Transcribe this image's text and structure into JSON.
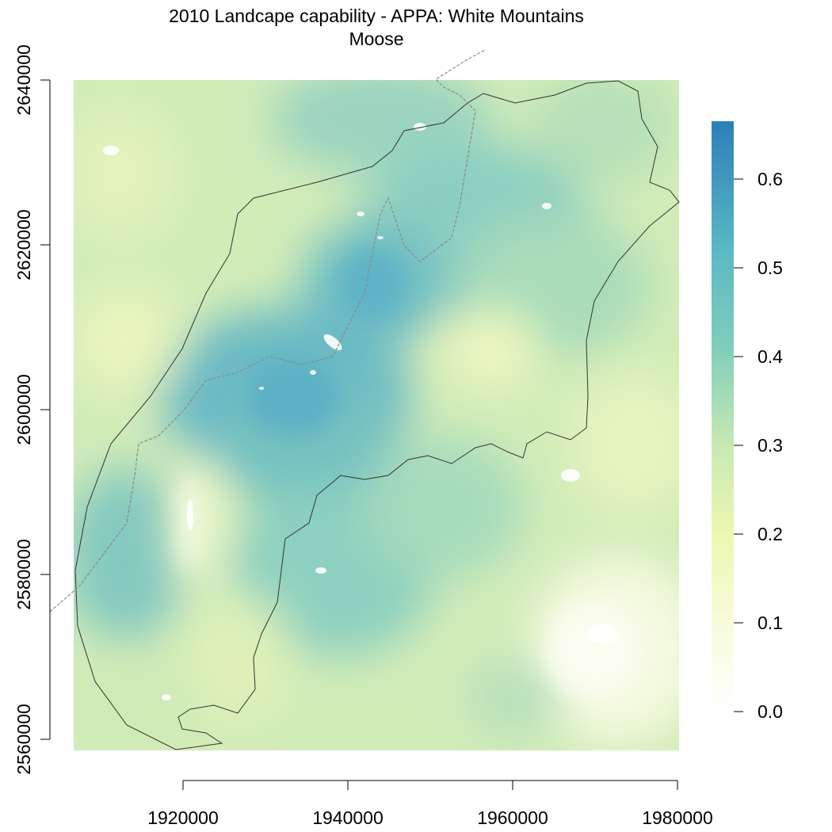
{
  "title_line1": "2010 Landcape capability - APPA: White Mountains",
  "title_line2": "Moose",
  "map": {
    "x_ticks": [
      "1920000",
      "1940000",
      "1960000",
      "1980000"
    ],
    "y_ticks": [
      "2560000",
      "2580000",
      "2600000",
      "2620000",
      "2640000"
    ],
    "x_range": [
      1908000,
      1981000
    ],
    "y_range": [
      2558000,
      2640000
    ]
  },
  "legend": {
    "ticks": [
      "0.0",
      "0.1",
      "0.2",
      "0.3",
      "0.4",
      "0.5",
      "0.6"
    ],
    "min": 0.0,
    "max": 0.66,
    "colors": [
      "#ffffff",
      "#f8fbda",
      "#edf8b1",
      "#c7e9b4",
      "#7fcdbb",
      "#5ab9c4",
      "#2c7fb8"
    ]
  }
}
